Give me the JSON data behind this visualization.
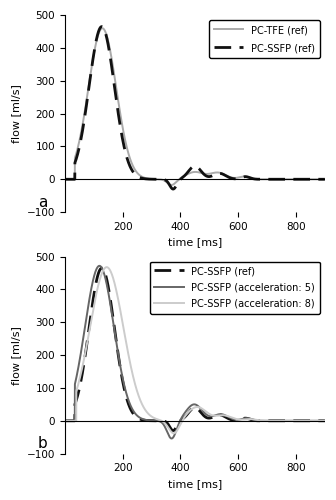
{
  "panel_a": {
    "label": "a",
    "ylabel": "flow [ml/s]",
    "xlabel": "time [ms]",
    "xlim": [
      0,
      900
    ],
    "ylim": [
      -100,
      500
    ],
    "yticks": [
      -100,
      0,
      100,
      200,
      300,
      400,
      500
    ],
    "xticks": [
      200,
      400,
      600,
      800
    ],
    "series": [
      {
        "label": "PC-TFE (ref)",
        "color": "#aaaaaa",
        "linestyle": "solid",
        "linewidth": 1.4
      },
      {
        "label": "PC-SSFP (ref)",
        "color": "#111111",
        "linestyle": "dashed",
        "linewidth": 2.0,
        "dashes": [
          6,
          3
        ]
      }
    ]
  },
  "panel_b": {
    "label": "b",
    "ylabel": "flow [ml/s]",
    "xlabel": "time [ms]",
    "xlim": [
      0,
      900
    ],
    "ylim": [
      -100,
      500
    ],
    "yticks": [
      -100,
      0,
      100,
      200,
      300,
      400,
      500
    ],
    "xticks": [
      200,
      400,
      600,
      800
    ],
    "series": [
      {
        "label": "PC-SSFP (ref)",
        "color": "#111111",
        "linestyle": "dashed",
        "linewidth": 2.0,
        "dashes": [
          6,
          3
        ]
      },
      {
        "label": "PC-SSFP (acceleration: 5)",
        "color": "#666666",
        "linestyle": "solid",
        "linewidth": 1.4
      },
      {
        "label": "PC-SSFP (acceleration: 8)",
        "color": "#cccccc",
        "linestyle": "solid",
        "linewidth": 1.4
      }
    ]
  },
  "background_color": "#ffffff",
  "legend_fontsize": 7.0,
  "axis_fontsize": 8,
  "tick_fontsize": 7.5,
  "label_fontsize": 11
}
